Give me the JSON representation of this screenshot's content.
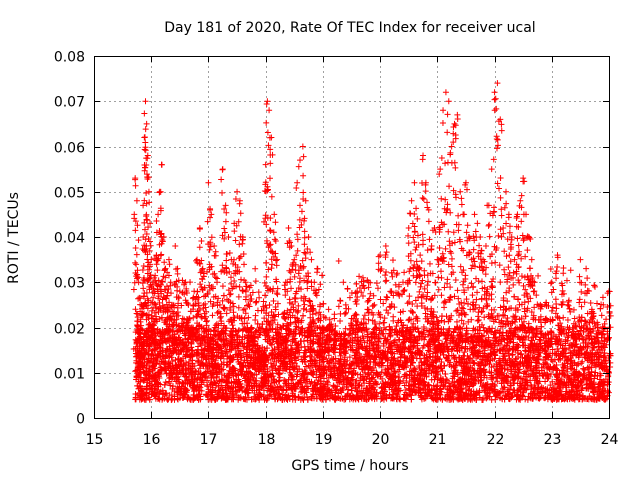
{
  "chart_data": {
    "type": "scatter",
    "title": "Day 181 of 2020, Rate Of TEC Index for receiver ucal",
    "xlabel": "GPS time / hours",
    "ylabel": "ROTI / TECUs",
    "xlim": [
      15,
      24
    ],
    "ylim": [
      0,
      0.08
    ],
    "x_ticks": [
      15,
      16,
      17,
      18,
      19,
      20,
      21,
      22,
      23,
      24
    ],
    "y_ticks": [
      0,
      0.01,
      0.02,
      0.03,
      0.04,
      0.05,
      0.06,
      0.07,
      0.08
    ],
    "x_tick_labels": [
      "15",
      "16",
      "17",
      "18",
      "19",
      "20",
      "21",
      "22",
      "23",
      "24"
    ],
    "y_tick_labels": [
      "0",
      "0.01",
      "0.02",
      "0.03",
      "0.04",
      "0.05",
      "0.06",
      "0.07",
      "0.08"
    ],
    "grid": true,
    "marker": "+",
    "color": "#ff0000",
    "series": [
      {
        "name": "ROTI",
        "x": [
          15.72,
          15.75,
          15.78,
          15.8,
          15.83,
          15.86,
          15.88,
          15.9,
          15.92,
          15.94,
          15.96,
          15.98,
          16.0,
          16.03,
          16.06,
          16.09,
          16.12,
          16.15,
          16.18,
          16.22,
          16.25,
          16.28,
          16.31,
          16.34,
          16.38,
          16.42,
          16.46,
          16.5,
          16.55,
          16.6,
          16.65,
          16.7,
          16.75,
          16.8,
          16.85,
          16.9,
          16.95,
          17.0,
          17.05,
          17.1,
          17.15,
          17.2,
          17.25,
          17.3,
          17.35,
          17.4,
          17.45,
          17.5,
          17.55,
          17.6,
          17.65,
          17.7,
          17.75,
          17.8,
          17.85,
          17.9,
          17.95,
          18.0,
          18.03,
          18.06,
          18.1,
          18.15,
          18.2,
          18.25,
          18.3,
          18.35,
          18.4,
          18.45,
          18.5,
          18.55,
          18.6,
          18.65,
          18.7,
          18.75,
          18.8,
          18.85,
          18.9,
          18.95,
          19.0,
          19.1,
          19.2,
          19.3,
          19.4,
          19.5,
          19.6,
          19.7,
          19.8,
          19.9,
          20.0,
          20.1,
          20.2,
          20.3,
          20.4,
          20.5,
          20.55,
          20.6,
          20.65,
          20.7,
          20.75,
          20.8,
          20.85,
          20.9,
          20.95,
          21.0,
          21.05,
          21.1,
          21.15,
          21.2,
          21.25,
          21.3,
          21.35,
          21.4,
          21.45,
          21.5,
          21.55,
          21.6,
          21.65,
          21.7,
          21.75,
          21.8,
          21.85,
          21.9,
          21.95,
          22.0,
          22.05,
          22.1,
          22.15,
          22.2,
          22.25,
          22.3,
          22.35,
          22.4,
          22.45,
          22.5,
          22.55,
          22.6,
          22.65,
          22.7,
          22.8,
          22.9,
          23.0,
          23.1,
          23.2,
          23.3,
          23.4,
          23.5,
          23.6,
          23.7,
          23.8,
          23.9,
          24.0
        ],
        "y": [
          0.053,
          0.048,
          0.03,
          0.018,
          0.025,
          0.04,
          0.062,
          0.07,
          0.065,
          0.058,
          0.05,
          0.043,
          0.035,
          0.03,
          0.028,
          0.036,
          0.045,
          0.05,
          0.056,
          0.04,
          0.033,
          0.027,
          0.035,
          0.03,
          0.025,
          0.038,
          0.033,
          0.028,
          0.022,
          0.03,
          0.025,
          0.02,
          0.028,
          0.035,
          0.042,
          0.033,
          0.027,
          0.052,
          0.045,
          0.038,
          0.03,
          0.025,
          0.055,
          0.047,
          0.04,
          0.035,
          0.043,
          0.05,
          0.048,
          0.04,
          0.03,
          0.025,
          0.02,
          0.018,
          0.016,
          0.015,
          0.014,
          0.056,
          0.07,
          0.068,
          0.062,
          0.045,
          0.035,
          0.02,
          0.018,
          0.03,
          0.042,
          0.038,
          0.035,
          0.052,
          0.057,
          0.06,
          0.048,
          0.04,
          0.035,
          0.03,
          0.033,
          0.025,
          0.02,
          0.024,
          0.022,
          0.026,
          0.025,
          0.022,
          0.028,
          0.031,
          0.03,
          0.025,
          0.036,
          0.038,
          0.028,
          0.032,
          0.03,
          0.042,
          0.048,
          0.052,
          0.044,
          0.036,
          0.058,
          0.052,
          0.046,
          0.038,
          0.042,
          0.035,
          0.055,
          0.068,
          0.072,
          0.07,
          0.06,
          0.065,
          0.067,
          0.05,
          0.045,
          0.052,
          0.04,
          0.035,
          0.045,
          0.043,
          0.04,
          0.035,
          0.038,
          0.047,
          0.055,
          0.072,
          0.074,
          0.066,
          0.042,
          0.05,
          0.045,
          0.04,
          0.035,
          0.045,
          0.048,
          0.053,
          0.045,
          0.04,
          0.035,
          0.03,
          0.025,
          0.022,
          0.03,
          0.036,
          0.032,
          0.026,
          0.022,
          0.035,
          0.033,
          0.024,
          0.02,
          0.025,
          0.028
        ]
      }
    ],
    "background_band": {
      "x_from": 15.72,
      "x_to": 24.0,
      "y_min": 0.004,
      "y_max": 0.02,
      "approx_points": 6000
    }
  }
}
